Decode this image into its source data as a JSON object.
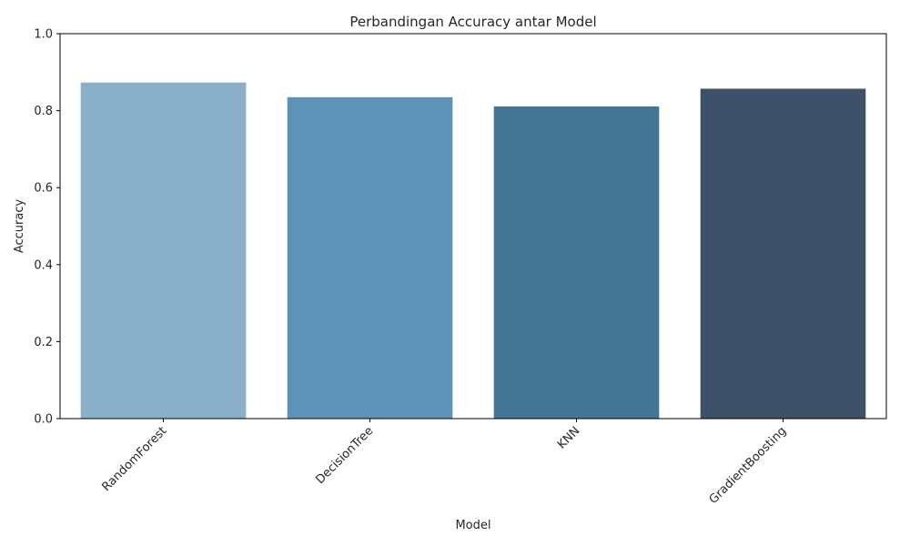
{
  "chart_data": {
    "type": "bar",
    "title": "Perbandingan Accuracy antar Model",
    "xlabel": "Model",
    "ylabel": "Accuracy",
    "categories": [
      "RandomForest",
      "DecisionTree",
      "KNN",
      "GradientBoosting"
    ],
    "values": [
      0.873,
      0.835,
      0.811,
      0.857
    ],
    "colors": [
      "#89afc9",
      "#5d93b8",
      "#447595",
      "#3d5268"
    ],
    "ylim": [
      0,
      1.0
    ],
    "yticks": [
      "0.0",
      "0.2",
      "0.4",
      "0.6",
      "0.8",
      "1.0"
    ],
    "ytick_values": [
      0,
      0.2,
      0.4,
      0.6,
      0.8,
      1.0
    ],
    "grid": false,
    "legend": "none",
    "xtick_rotation": 45
  }
}
